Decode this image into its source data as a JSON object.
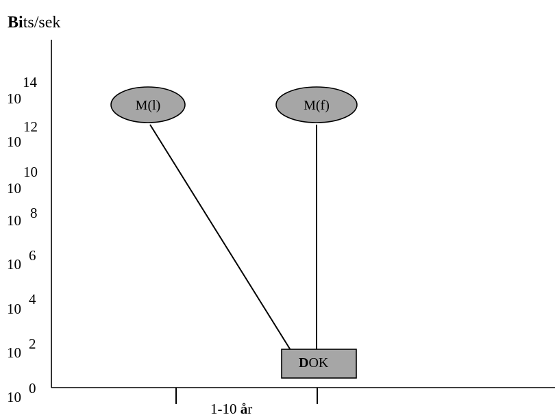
{
  "y_axis": {
    "title_bold": "Bi",
    "title_rest": "ts/sek",
    "ticks": [
      {
        "base": "10",
        "exp": "0"
      },
      {
        "base": "10",
        "exp": "2"
      },
      {
        "base": "10",
        "exp": "4"
      },
      {
        "base": "10",
        "exp": "6"
      },
      {
        "base": "10",
        "exp": "8"
      },
      {
        "base": "10",
        "exp": "10"
      },
      {
        "base": "10",
        "exp": "12"
      },
      {
        "base": "10",
        "exp": "14"
      }
    ]
  },
  "x_axis": {
    "label_prefix": "1-10 ",
    "label_bold": "å",
    "label_suffix": "r"
  },
  "nodes": {
    "ml": {
      "label": "M(l)"
    },
    "mf": {
      "label": "M(f)"
    },
    "dok": {
      "label_bold": "D",
      "label_rest": "OK"
    }
  },
  "colors": {
    "node_fill": "#a6a6a6",
    "stroke": "#000000",
    "background": "#ffffff"
  }
}
